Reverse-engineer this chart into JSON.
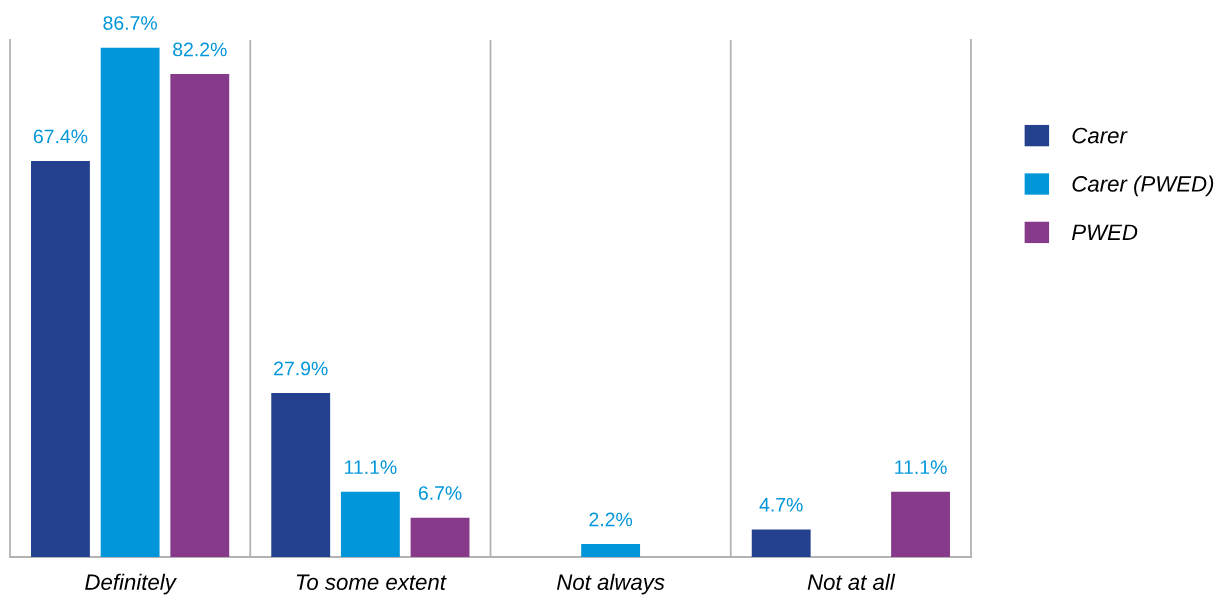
{
  "chart_data": {
    "type": "bar",
    "categories": [
      "Definitely",
      "To some extent",
      "Not always",
      "Not at all"
    ],
    "series": [
      {
        "name": "Carer",
        "color": "#23418f",
        "values": [
          67.4,
          27.9,
          null,
          4.7
        ],
        "value_labels": [
          "67.4%",
          "27.9%",
          null,
          "4.7%"
        ]
      },
      {
        "name": "Carer (PWED)",
        "color": "#0096d9",
        "values": [
          86.7,
          11.1,
          2.2,
          null
        ],
        "value_labels": [
          "86.7%",
          "11.1%",
          "2.2%",
          null
        ]
      },
      {
        "name": "PWED",
        "color": "#863a89",
        "values": [
          82.2,
          6.7,
          null,
          11.1
        ],
        "value_labels": [
          "82.2%",
          "6.7%",
          null,
          "11.1%"
        ]
      }
    ],
    "ylim": [
      0,
      88
    ],
    "tick_labels": "x",
    "grid": "x",
    "legend": "right"
  }
}
